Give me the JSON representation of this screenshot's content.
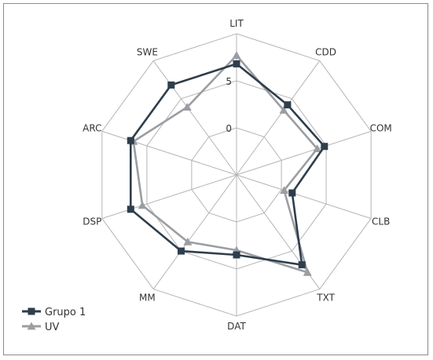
{
  "chart_data": {
    "type": "radar",
    "axes": [
      "LIT",
      "CDD",
      "COM",
      "CLB",
      "TXT",
      "DAT",
      "MM",
      "DSP",
      "ARC",
      "SWE"
    ],
    "rlim": [
      -5,
      10
    ],
    "ticks": [
      0,
      5
    ],
    "tick_labels": [
      "0",
      "5"
    ],
    "grid": true,
    "legend_position": "bottom-left",
    "series": [
      {
        "name": "Grupo 1",
        "color": "#2f3e4c",
        "marker": "square",
        "values": [
          6.8,
          4.2,
          4.8,
          1.2,
          6.8,
          3.5,
          5.0,
          6.8,
          6.8,
          6.8
        ]
      },
      {
        "name": "UV",
        "color": "#9a9ea3",
        "marker": "triangle",
        "values": [
          7.7,
          3.5,
          4.0,
          0.3,
          7.8,
          3.0,
          3.8,
          5.5,
          6.5,
          3.9
        ]
      }
    ]
  }
}
